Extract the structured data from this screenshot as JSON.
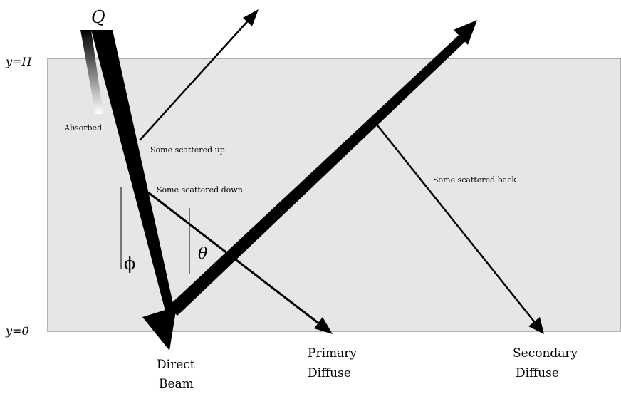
{
  "labels": {
    "source": "Q",
    "top_boundary": "y=H",
    "bottom_boundary": "y=0",
    "absorbed": "Absorbed",
    "scattered_up": "Some scattered up",
    "scattered_down": "Some scattered down",
    "scattered_back": "Some scattered back",
    "angle_phi": "ϕ",
    "angle_theta": "θ",
    "direct_beam_line1": "Direct",
    "direct_beam_line2": "Beam",
    "primary_diffuse_line1": "Primary",
    "primary_diffuse_line2": "Diffuse",
    "secondary_diffuse_line1": "Secondary",
    "secondary_diffuse_line2": "Diffuse"
  },
  "colors": {
    "layer_fill": "#e6e6e6",
    "layer_border": "#9a9a9a",
    "ink": "#000000"
  }
}
